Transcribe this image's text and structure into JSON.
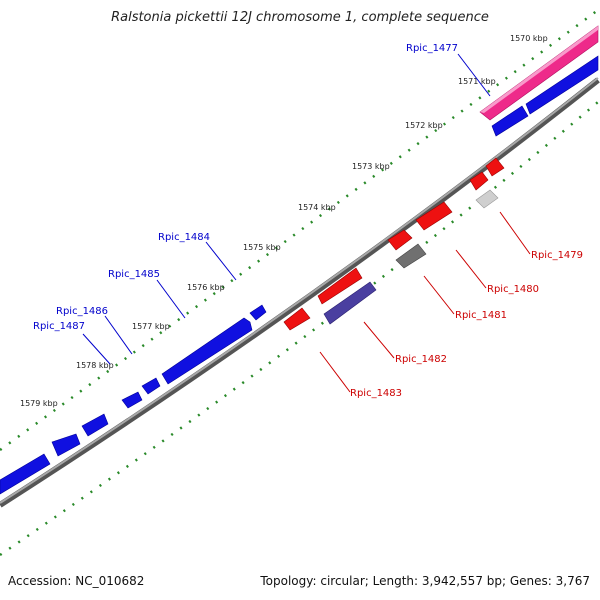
{
  "title": "Ralstonia pickettii 12J chromosome 1, complete sequence",
  "accession": "Accession: NC_010682",
  "summary": "Topology: circular; Length: 3,942,557 bp; Genes: 3,767",
  "kbp_marks": [
    "1570 kbp",
    "1571 kbp",
    "1572 kbp",
    "1573 kbp",
    "1574 kbp",
    "1575 kbp",
    "1576 kbp",
    "1577 kbp",
    "1578 kbp",
    "1579 kbp"
  ],
  "forward_gene_labels": [
    "Rpic_1477",
    "Rpic_1484",
    "Rpic_1485",
    "Rpic_1486",
    "Rpic_1487"
  ],
  "reverse_gene_labels": [
    "Rpic_1479",
    "Rpic_1480",
    "Rpic_1481",
    "Rpic_1482",
    "Rpic_1483"
  ],
  "colors": {
    "forward_label": "#0000cc",
    "reverse_label": "#cc0000",
    "forward_gene": "#1010e0",
    "reverse_gene": "#ee1111",
    "highlight_gene": "#ee2a8a",
    "backbone": "#808080",
    "tick_dots": "#2a8a2a"
  }
}
